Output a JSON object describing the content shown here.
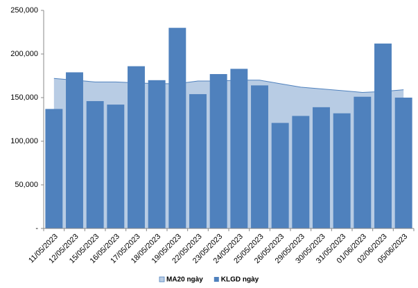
{
  "chart_data": {
    "type": "bar",
    "categories": [
      "11/05/2023",
      "12/05/2023",
      "15/05/2023",
      "16/05/2023",
      "17/05/2023",
      "18/05/2023",
      "19/05/2023",
      "22/05/2023",
      "23/05/2023",
      "24/05/2023",
      "25/05/2023",
      "26/05/2023",
      "29/05/2023",
      "30/05/2023",
      "31/05/2023",
      "01/06/2023",
      "02/06/2023",
      "05/06/2023"
    ],
    "series": [
      {
        "name": "MA20 ngày",
        "type": "area",
        "color": "#b8cce4",
        "values": [
          172000,
          170000,
          168000,
          168000,
          167000,
          166000,
          166000,
          169000,
          169000,
          170000,
          170000,
          166000,
          162000,
          160000,
          158000,
          156000,
          157000,
          159000
        ]
      },
      {
        "name": "KLGD ngày",
        "type": "bar",
        "color": "#4f81bd",
        "values": [
          137000,
          179000,
          146000,
          142000,
          186000,
          170000,
          230000,
          154000,
          177000,
          183000,
          164000,
          121000,
          129000,
          139000,
          132000,
          151000,
          212000,
          150000
        ]
      }
    ],
    "ylim": [
      0,
      250000
    ],
    "yticks": [
      {
        "value": 0,
        "label": "-"
      },
      {
        "value": 50000,
        "label": "50,000"
      },
      {
        "value": 100000,
        "label": "100,000"
      },
      {
        "value": 150000,
        "label": "150,000"
      },
      {
        "value": 200000,
        "label": "200,000"
      },
      {
        "value": 250000,
        "label": "250,000"
      }
    ],
    "grid": false,
    "legend": "bottom"
  }
}
